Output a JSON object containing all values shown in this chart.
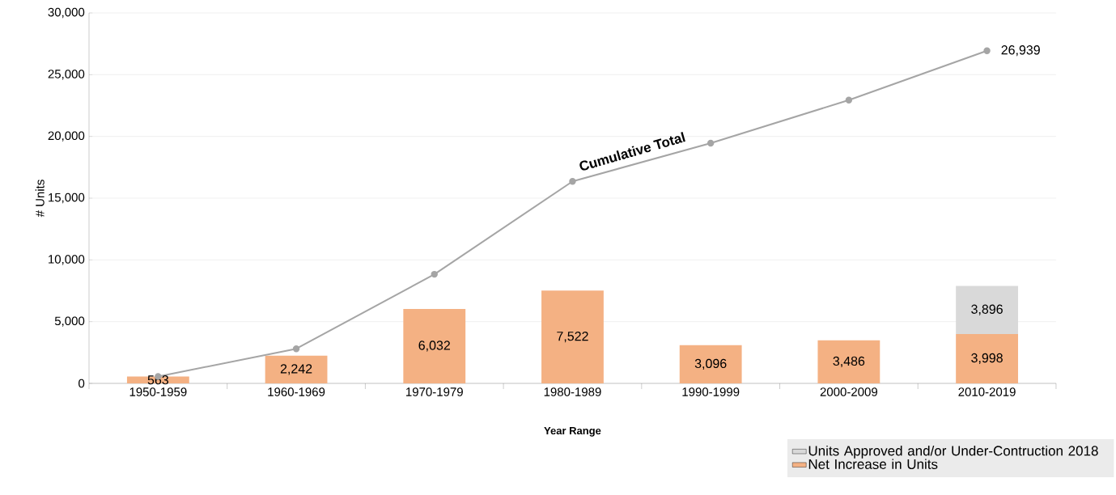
{
  "chart_data": {
    "type": "bar",
    "stacked": true,
    "xlabel": "Year Range",
    "ylabel": "# Units",
    "categories": [
      "1950-1959",
      "1960-1969",
      "1970-1979",
      "1980-1989",
      "1990-1999",
      "2000-2009",
      "2010-2019"
    ],
    "ylim": [
      0,
      30000
    ],
    "yticks": [
      {
        "value": 0,
        "label": "0"
      },
      {
        "value": 5000,
        "label": "5,000"
      },
      {
        "value": 10000,
        "label": "10,000"
      },
      {
        "value": 15000,
        "label": "15,000"
      },
      {
        "value": 20000,
        "label": "20,000"
      },
      {
        "value": 25000,
        "label": "25,000"
      },
      {
        "value": 30000,
        "label": "30,000"
      }
    ],
    "grid": "y",
    "legend": "bottom right",
    "series": [
      {
        "name": "Net Increase in Units",
        "color": "#f4b183",
        "values": [
          563,
          2242,
          6032,
          7522,
          3096,
          3486,
          3998
        ],
        "value_labels": [
          "563",
          "2,242",
          "6,032",
          "7,522",
          "3,096",
          "3,486",
          "3,998"
        ]
      },
      {
        "name": "Units Approved and/or Under-Contruction 2018",
        "color": "#d9d9d9",
        "values": [
          null,
          null,
          null,
          null,
          null,
          null,
          3896
        ],
        "value_labels": [
          null,
          null,
          null,
          null,
          null,
          null,
          "3,896"
        ]
      },
      {
        "name": "Cumulative Total",
        "type": "line",
        "color": "#a5a5a5",
        "marker": "circle",
        "values": [
          563,
          2805,
          8837,
          16359,
          19455,
          22941,
          26939
        ],
        "value_labels": [
          null,
          null,
          null,
          null,
          null,
          null,
          "26,939"
        ]
      }
    ]
  }
}
